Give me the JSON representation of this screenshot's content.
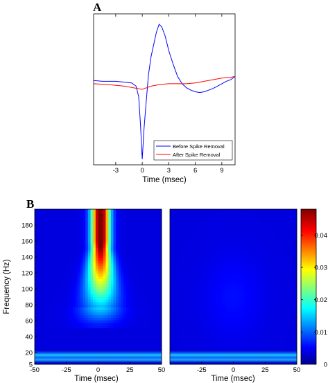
{
  "chart_data": [
    {
      "panel": "A",
      "type": "line",
      "xlabel": "Time (msec)",
      "ylabel": "",
      "xlim": [
        -5.5,
        10.5
      ],
      "ylim": [
        -1.0,
        0.88
      ],
      "xticks": [
        -3,
        0,
        3,
        6,
        9
      ],
      "legend_position": "bottom-right",
      "series": [
        {
          "name": "Before Spike Removal",
          "color": "#0000ff",
          "x": [
            -5.5,
            -4.5,
            -3.0,
            -2.0,
            -1.2,
            -0.7,
            -0.4,
            -0.2,
            0.0,
            0.2,
            0.4,
            0.7,
            1.0,
            1.3,
            1.6,
            1.9,
            2.2,
            2.6,
            3.0,
            3.5,
            4.0,
            4.5,
            5.0,
            5.5,
            6.0,
            6.5,
            7.0,
            7.5,
            8.0,
            8.5,
            9.0,
            9.5,
            10.0,
            10.5
          ],
          "y": [
            0.05,
            0.04,
            0.04,
            0.03,
            0.02,
            -0.02,
            -0.15,
            -0.5,
            -0.93,
            -0.55,
            -0.28,
            0.12,
            0.35,
            0.5,
            0.65,
            0.75,
            0.72,
            0.6,
            0.42,
            0.25,
            0.1,
            0.01,
            -0.04,
            -0.07,
            -0.09,
            -0.1,
            -0.09,
            -0.07,
            -0.05,
            -0.02,
            0.01,
            0.04,
            0.06,
            0.1
          ]
        },
        {
          "name": "After Spike Removal",
          "color": "#ff0000",
          "x": [
            -5.5,
            -4.0,
            -2.0,
            -1.0,
            0.0,
            0.5,
            1.0,
            2.0,
            3.0,
            4.0,
            5.0,
            6.0,
            7.0,
            8.0,
            9.0,
            10.0,
            10.5
          ],
          "y": [
            0.01,
            0.0,
            -0.02,
            -0.04,
            -0.06,
            -0.04,
            -0.02,
            0.0,
            0.01,
            0.01,
            0.01,
            0.02,
            0.04,
            0.06,
            0.08,
            0.09,
            0.1
          ]
        }
      ]
    },
    {
      "panel": "B",
      "type": "heatmap",
      "ylabel": "Frequency (Hz)",
      "colormap": "jet",
      "colorbar": {
        "range": [
          0,
          0.048
        ],
        "ticks": [
          "0",
          "0.01",
          "0.02",
          "0.03",
          "0.04"
        ]
      },
      "subplots": [
        {
          "name": "Before Spike Removal",
          "xlabel": "Time (msec)",
          "xlim": [
            -50,
            50
          ],
          "ylim": [
            5,
            200
          ],
          "xticks": [
            "-50",
            "-25",
            "0",
            "25",
            "50"
          ],
          "yticks": [
            "5",
            "20",
            "40",
            "60",
            "80",
            "100",
            "120",
            "140",
            "160",
            "180"
          ],
          "peak_value": 0.048,
          "peak_time_msec": 2
        },
        {
          "name": "After Spike Removal",
          "xlabel": "Time (msec)",
          "xlim": [
            -50,
            50
          ],
          "ylim": [
            5,
            200
          ],
          "xticks": [
            "-25",
            "0",
            "25",
            "50"
          ],
          "peak_value": 0.002
        }
      ]
    }
  ],
  "legend": {
    "before": "Before Spike Removal",
    "after": "After Spike Removal"
  },
  "labels": {
    "panel_a": "A",
    "panel_b": "B",
    "time_label": "Time (msec)",
    "freq_label": "Frequency (Hz)"
  }
}
